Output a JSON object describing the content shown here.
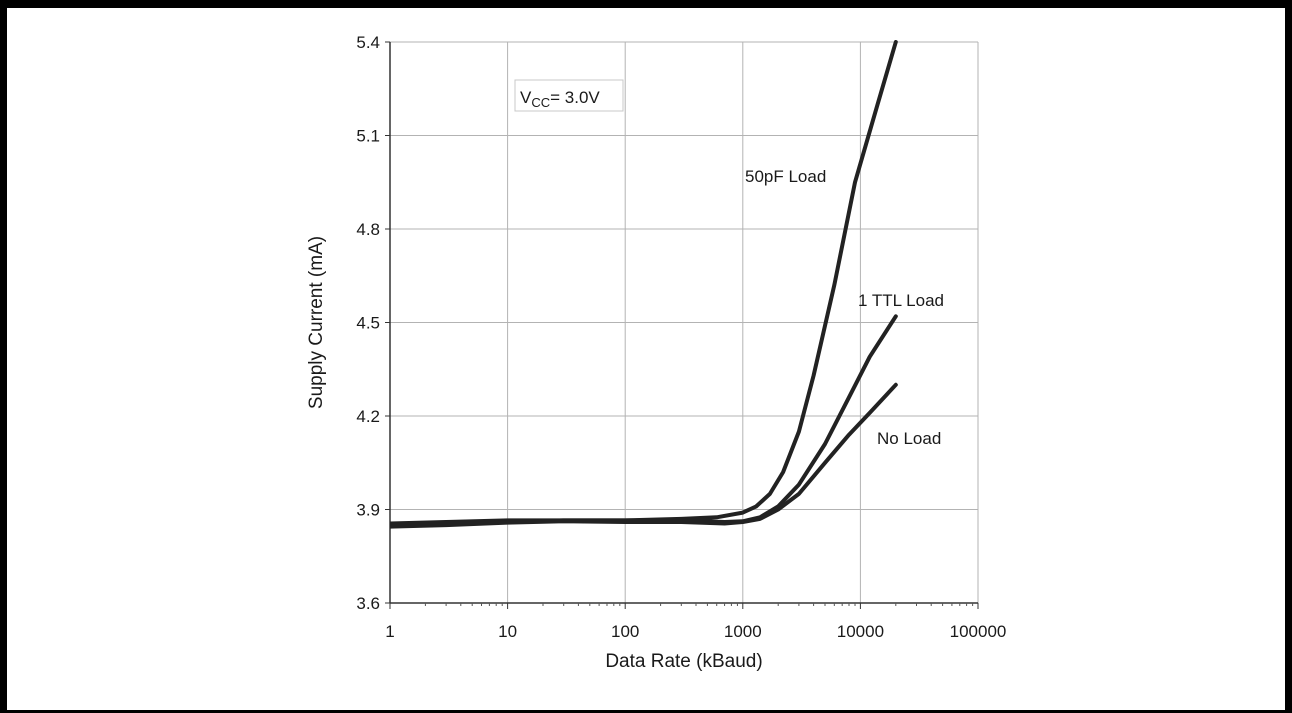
{
  "chart_data": {
    "type": "line",
    "title": "",
    "xlabel": "Data Rate (kBaud)",
    "ylabel": "Supply Current (mA)",
    "x_scale": "log",
    "xlim": [
      1,
      100000
    ],
    "ylim": [
      3.6,
      5.4
    ],
    "x_ticks": [
      1,
      10,
      100,
      1000,
      10000,
      100000
    ],
    "x_tick_labels": [
      "1",
      "10",
      "100",
      "1000",
      "10000",
      "100000"
    ],
    "y_ticks": [
      3.6,
      3.9,
      4.2,
      4.5,
      4.8,
      5.1,
      5.4
    ],
    "y_tick_labels": [
      "3.6",
      "3.9",
      "4.2",
      "4.5",
      "4.8",
      "5.1",
      "5.4"
    ],
    "grid": true,
    "annotation": {
      "main": "V",
      "sub": "CC",
      "rest": "= 3.0V"
    },
    "series": [
      {
        "name": "50pF Load",
        "color": "#222222",
        "x": [
          1,
          3,
          10,
          30,
          100,
          300,
          600,
          1000,
          1300,
          1700,
          2200,
          3000,
          4000,
          6000,
          9000,
          14000,
          20000
        ],
        "y": [
          3.855,
          3.86,
          3.865,
          3.865,
          3.865,
          3.87,
          3.875,
          3.89,
          3.91,
          3.95,
          4.02,
          4.15,
          4.33,
          4.62,
          4.95,
          5.2,
          5.4
        ]
      },
      {
        "name": "1 TTL Load",
        "color": "#222222",
        "x": [
          1,
          3,
          10,
          30,
          100,
          300,
          700,
          1000,
          1400,
          2000,
          3000,
          5000,
          8000,
          12000,
          20000
        ],
        "y": [
          3.85,
          3.855,
          3.86,
          3.865,
          3.865,
          3.865,
          3.86,
          3.862,
          3.875,
          3.91,
          3.98,
          4.11,
          4.26,
          4.39,
          4.52
        ]
      },
      {
        "name": "No Load",
        "color": "#222222",
        "x": [
          1,
          3,
          10,
          30,
          100,
          300,
          700,
          1000,
          1400,
          2000,
          3000,
          5000,
          8000,
          12000,
          20000
        ],
        "y": [
          3.845,
          3.85,
          3.858,
          3.862,
          3.86,
          3.86,
          3.855,
          3.86,
          3.87,
          3.9,
          3.95,
          4.05,
          4.14,
          4.21,
          4.3
        ]
      }
    ]
  }
}
